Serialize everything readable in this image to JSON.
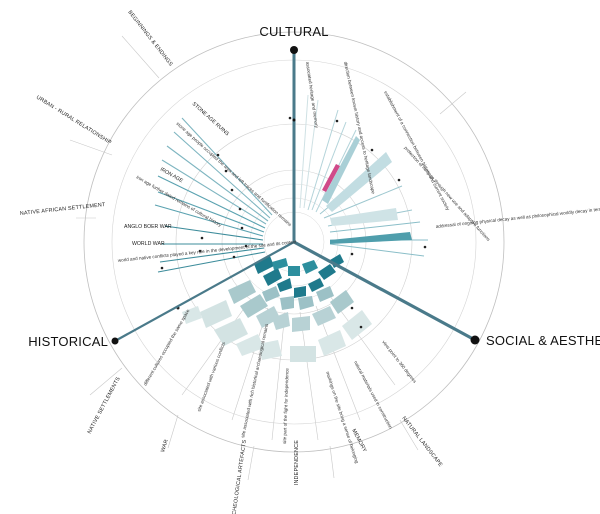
{
  "axes": {
    "cultural": "CULTURAL",
    "historical": "HISTORICAL",
    "social_aesthetic": "SOCIAL & AESTHETIC"
  },
  "outer_labels": {
    "beginnings": "BEGINNINGS & ENDINGS",
    "urban_rural": "URBAN - RURAL RELATIONSHIP",
    "native_african": "NATIVE AFRICAN SETTLEMENT",
    "native_settlements": "NATIVE SETTLEMENTS",
    "war": "WAR",
    "archaeological": "ARCHEOLOGICAL ARTEFACTS",
    "independence": "INDEPENDENCE",
    "memory": "MEMORY",
    "natural_landscape": "NATURAL LANDSCAPE"
  },
  "historical_labels": {
    "stone_age": "STONE AGE RUINS",
    "stone_age_desc": "stone age people occupied the area and left traces and fortification remains",
    "iron_age": "IRON AGE",
    "iron_age_desc": "iron age further dated remains of cultural history",
    "anglo_boer": "ANGLO BOER WAR",
    "world_war": "WORLD WAR",
    "world_native": "world and native conflicts played a key role in the development of the site and its context"
  },
  "cultural_labels": {
    "associated": "associated heritage and memory",
    "direction": "direction between known history and access to heritage landscape",
    "establishment": "establishment of a connection between history and current society",
    "protection": "protection of heritage through new use and adaptive functions",
    "addressal": "addressal of ongoing physical decay as well as philosophical worldly decay in terms of conflicts"
  },
  "lower_labels": {
    "different_cultures": "different cultures occupied the same space",
    "site_conflicts": "site associated with various conflicts",
    "site_historical": "site associated with rich historical archaeological remains",
    "independence_fight": "site part of the fight for independence",
    "markings": "markings on the site bring a sense of belonging",
    "natural_materials": "natural materials used in construction",
    "view_point": "view point to 360 degrees"
  },
  "colors": {
    "axis": "#4a7a8a",
    "teal_dark": "#1f7a8c",
    "teal_light": "#a9cfd6",
    "pale": "#c9dcdc",
    "grey": "#b0b0b0"
  }
}
